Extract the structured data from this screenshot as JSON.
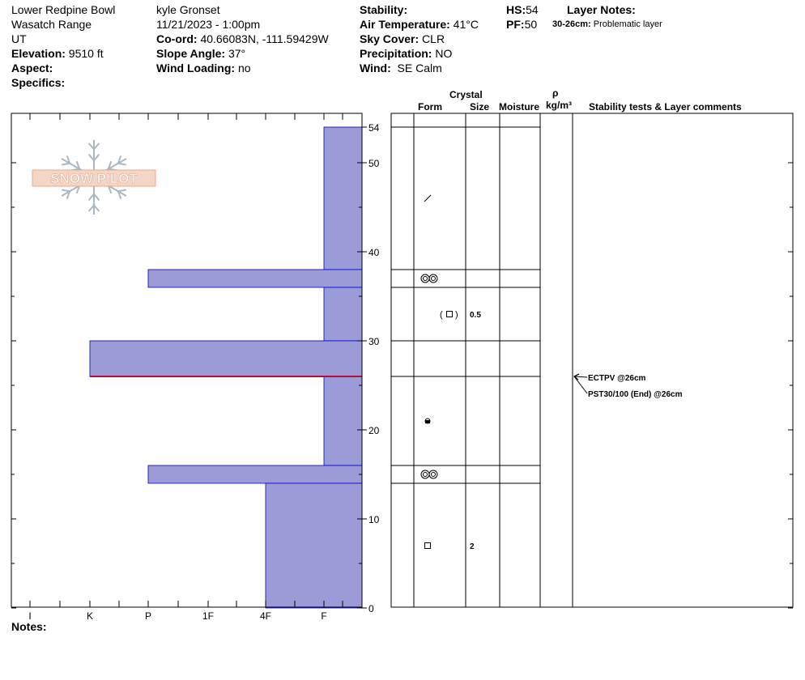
{
  "header": {
    "location": "Lower Redpine Bowl",
    "range": "Wasatch Range",
    "state": "UT",
    "elevation_label": "Elevation:",
    "elevation_value": "9510 ft",
    "aspect_label": "Aspect:",
    "specifics_label": "Specifics:",
    "observer": "kyle Gronset",
    "datetime": "11/21/2023 - 1:00pm",
    "coord_label": "Co-ord:",
    "coord_value": "40.66083N, -111.59429W",
    "slope_label": "Slope Angle:",
    "slope_value": "37°",
    "wind_loading_label": "Wind Loading:",
    "wind_loading_value": "no",
    "stability_label": "Stability:",
    "air_temp_label": "Air Temperature:",
    "air_temp_value": "41°C",
    "sky_label": "Sky Cover:",
    "sky_value": "CLR",
    "precip_label": "Precipitation:",
    "precip_value": "NO",
    "wind_label": "Wind:",
    "wind_value": "SE Calm",
    "hs_label": "HS:",
    "hs_value": "54",
    "pf_label": "PF:",
    "pf_value": "50",
    "layer_notes_label": "Layer Notes:",
    "layer_note_depth": "30-26cm:",
    "layer_note_text": "Problematic layer"
  },
  "logo": {
    "text": "SNOW PILOT"
  },
  "columns": {
    "crystal": "Crystal",
    "form": "Form",
    "size": "Size",
    "moisture": "Moisture",
    "rho": "ρ",
    "density_unit": "kg/m³",
    "stability_comments": "Stability tests & Layer comments"
  },
  "notes_label": "Notes:",
  "colors": {
    "bar_fill": "#9b9bd7",
    "bar_stroke": "#0000cc",
    "weak_layer": "#b0103a"
  },
  "chart_data": {
    "type": "bar",
    "title": "",
    "ylabel": "",
    "xlabel": "",
    "ylim": [
      0,
      54
    ],
    "y_ticks": [
      0,
      10,
      20,
      30,
      40,
      50,
      54
    ],
    "hardness_ticks": [
      "I",
      "K",
      "P",
      "1F",
      "4F",
      "F"
    ],
    "layers": [
      {
        "top": 54,
        "bottom": 38,
        "hardness": "F"
      },
      {
        "top": 38,
        "bottom": 36,
        "hardness": "P"
      },
      {
        "top": 36,
        "bottom": 30,
        "hardness": "F"
      },
      {
        "top": 30,
        "bottom": 26,
        "hardness": "K"
      },
      {
        "top": 26,
        "bottom": 16,
        "hardness": "F"
      },
      {
        "top": 16,
        "bottom": 14,
        "hardness": "P"
      },
      {
        "top": 14,
        "bottom": 0,
        "hardness": "4F"
      }
    ],
    "weak_layer_depth": 26,
    "layer_boundaries": [
      54,
      38,
      36,
      30,
      26,
      16,
      14,
      0
    ],
    "crystal_forms": [
      {
        "height": 46,
        "form": "precipitation particle"
      },
      {
        "height": 37,
        "form": "melt form"
      },
      {
        "height": 33,
        "form": "faceted crystal",
        "size": "0.5"
      },
      {
        "height": 21,
        "form": "melt-freeze crust"
      },
      {
        "height": 15,
        "form": "melt form"
      },
      {
        "height": 7,
        "form": "faceted crystal",
        "size": "2"
      }
    ],
    "stability_tests": [
      {
        "depth": 26,
        "label": "ECTPV @26cm"
      },
      {
        "depth": 26,
        "label": "PST30/100 (End) @26cm"
      }
    ]
  }
}
